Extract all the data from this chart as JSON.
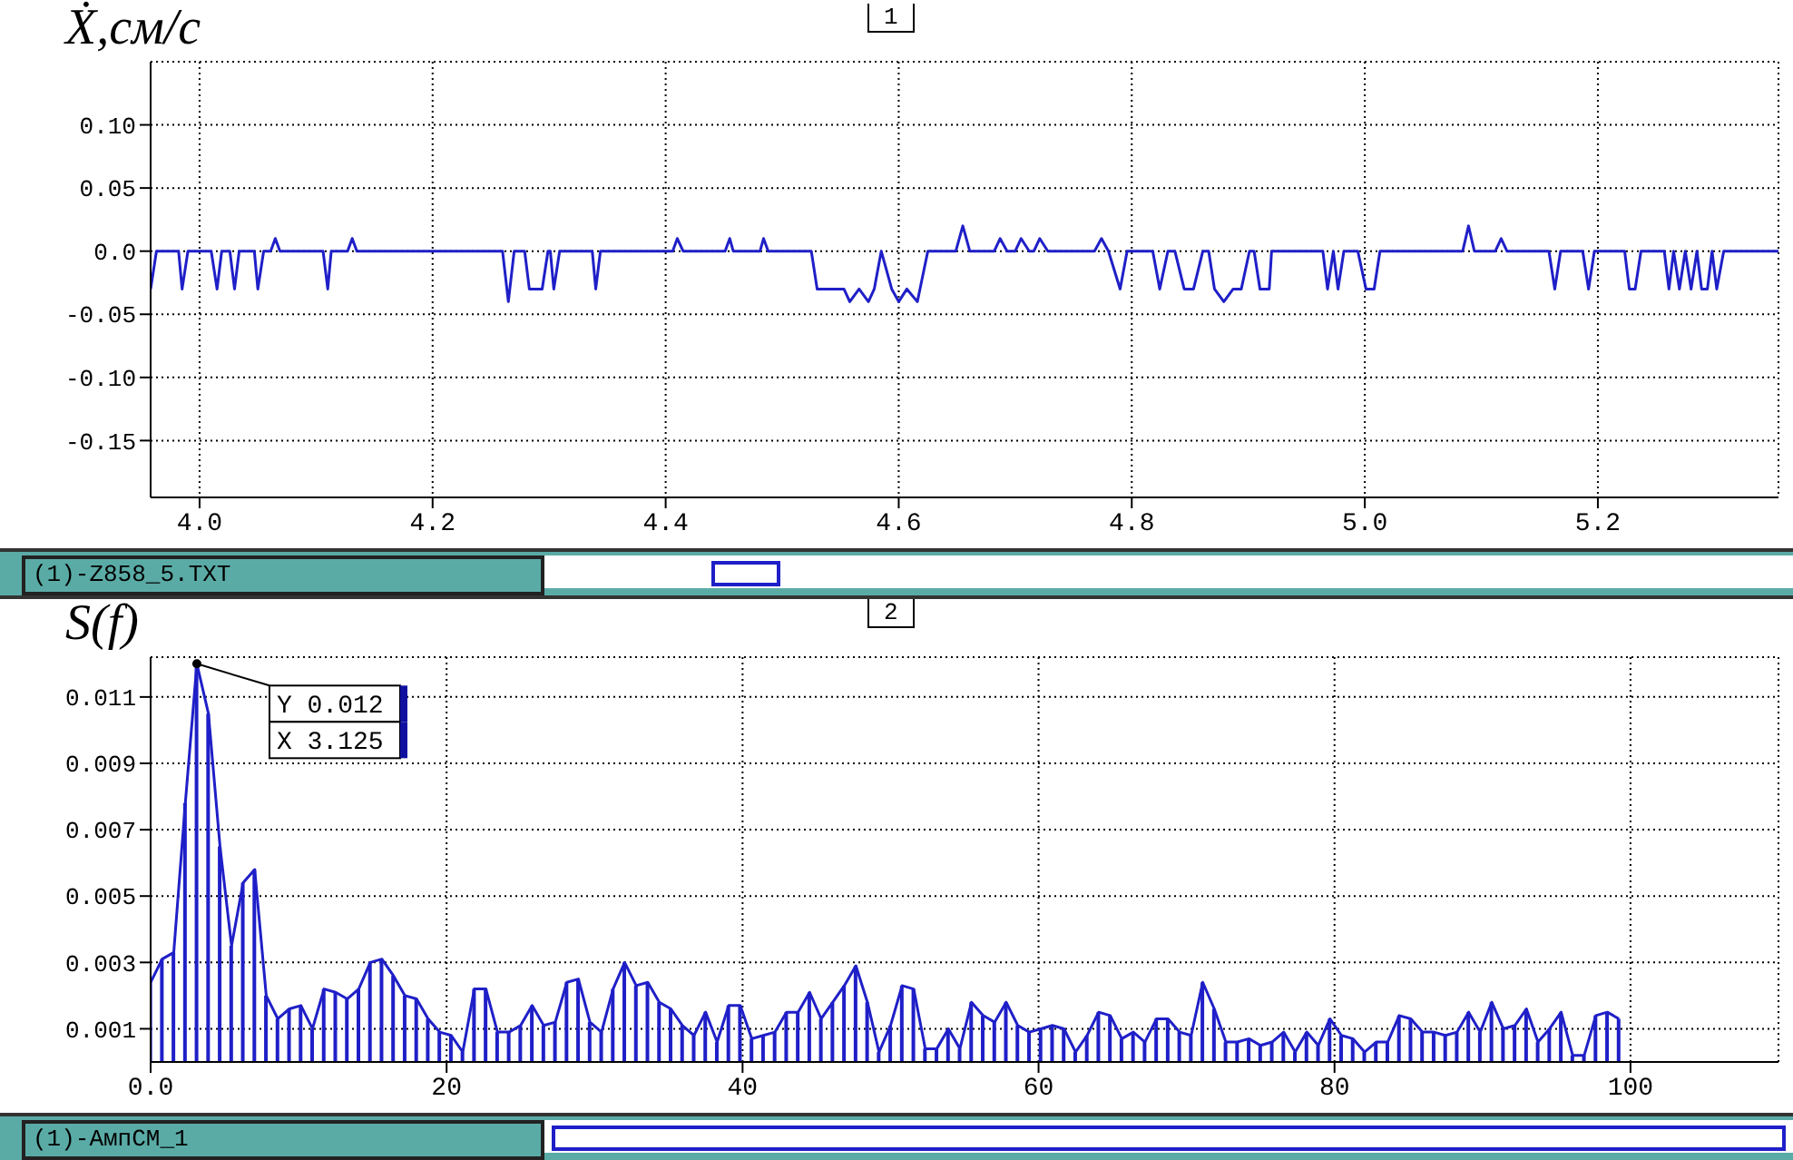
{
  "chart_data": [
    {
      "type": "line",
      "ylabel": "Ẋ,см/с",
      "annotations": [
        "1",
        "(1)-Z858_5.TXT"
      ],
      "color": "#1f1fc8",
      "grid": true,
      "xlim": [
        3.958,
        5.355
      ],
      "ylim": [
        -0.195,
        0.15
      ],
      "xticks": [
        {
          "value": 4,
          "label": "4.0"
        },
        4.2,
        4.4,
        4.6,
        4.8,
        {
          "value": 5,
          "label": "5.0"
        },
        5.2
      ],
      "yticks": [
        {
          "value": 0.1,
          "label": "0.10"
        },
        0.05,
        {
          "value": 0,
          "label": "0.0"
        },
        -0.05,
        {
          "value": -0.1,
          "label": "-0.10"
        },
        -0.15
      ],
      "x": [
        3.958,
        3.963,
        3.982,
        3.985,
        3.99,
        4.01,
        4.015,
        4.019,
        4.026,
        4.03,
        4.034,
        4.047,
        4.05,
        4.055,
        4.061,
        4.065,
        4.069,
        4.106,
        4.11,
        4.113,
        4.127,
        4.131,
        4.135,
        4.26,
        4.265,
        4.27,
        4.279,
        4.283,
        4.294,
        4.299,
        4.301,
        4.304,
        4.309,
        4.337,
        4.34,
        4.344,
        4.406,
        4.41,
        4.415,
        4.451,
        4.455,
        4.458,
        4.481,
        4.484,
        4.488,
        4.525,
        4.53,
        4.553,
        4.558,
        4.566,
        4.574,
        4.579,
        4.585,
        4.594,
        4.6,
        4.607,
        4.616,
        4.625,
        4.649,
        4.655,
        4.661,
        4.682,
        4.687,
        4.693,
        4.7,
        4.705,
        4.712,
        4.716,
        4.721,
        4.728,
        4.768,
        4.774,
        4.78,
        4.79,
        4.796,
        4.818,
        4.824,
        4.831,
        4.837,
        4.845,
        4.853,
        4.861,
        4.866,
        4.871,
        4.879,
        4.887,
        4.894,
        4.901,
        4.905,
        4.91,
        4.918,
        4.92,
        4.964,
        4.968,
        4.973,
        4.977,
        4.982,
        4.988,
        4.994,
        5.001,
        5.008,
        5.013,
        5.084,
        5.089,
        5.094,
        5.112,
        5.117,
        5.122,
        5.158,
        5.163,
        5.168,
        5.187,
        5.192,
        5.197,
        5.223,
        5.227,
        5.232,
        5.237,
        5.257,
        5.261,
        5.265,
        5.27,
        5.275,
        5.28,
        5.285,
        5.289,
        5.294,
        5.298,
        5.302,
        5.308,
        5.355
      ],
      "values": [
        -0.03,
        0,
        0,
        -0.03,
        0,
        0,
        -0.03,
        0,
        0,
        -0.03,
        0,
        0,
        -0.03,
        0,
        0,
        0.01,
        0,
        0,
        -0.03,
        0,
        0,
        0.01,
        0,
        0,
        -0.04,
        0,
        0,
        -0.03,
        -0.03,
        0,
        0,
        -0.03,
        0,
        0,
        -0.03,
        0,
        0,
        0.01,
        0,
        0,
        0.01,
        0,
        0,
        0.01,
        0,
        0,
        -0.03,
        -0.03,
        -0.04,
        -0.03,
        -0.04,
        -0.03,
        0,
        -0.03,
        -0.04,
        -0.03,
        -0.04,
        0,
        0,
        0.02,
        0,
        0,
        0.01,
        0,
        0,
        0.01,
        0,
        0,
        0.01,
        0,
        0,
        0.01,
        0,
        -0.03,
        0,
        0,
        -0.03,
        0,
        0,
        -0.03,
        -0.03,
        0,
        0,
        -0.03,
        -0.04,
        -0.03,
        -0.03,
        0,
        0,
        -0.03,
        -0.03,
        0,
        0,
        -0.03,
        0,
        -0.03,
        0,
        0,
        0,
        -0.03,
        -0.03,
        0,
        0,
        0.02,
        0,
        0,
        0.01,
        0,
        0,
        -0.03,
        0,
        0,
        -0.03,
        0,
        0,
        -0.03,
        -0.03,
        0,
        0,
        -0.03,
        0,
        -0.03,
        0,
        -0.03,
        0,
        -0.03,
        -0.03,
        0,
        -0.03,
        0,
        0
      ]
    },
    {
      "type": "line",
      "ylabel": "S(f)",
      "annotations": [
        "2",
        "(1)-АмпСМ_1",
        {
          "text": "Y 0.012",
          "x": 3.125,
          "y": 0.012
        },
        "X 3.125"
      ],
      "grid": true,
      "xlim": [
        0,
        110
      ],
      "ylim": [
        0,
        0.0122
      ],
      "xticks": [
        {
          "value": 0,
          "label": "0.0"
        },
        20,
        40,
        60,
        80,
        100
      ],
      "yticks": [
        0.001,
        0.003,
        0.005,
        0.007,
        0.009,
        0.011
      ],
      "x": [
        0,
        0.78125,
        1.5625,
        2.34375,
        3.125,
        3.90625,
        4.6875,
        5.46875,
        6.25,
        7.03125,
        7.8125,
        8.59375,
        9.375,
        10.15625,
        10.9375,
        11.71875,
        12.5,
        13.28125,
        14.0625,
        14.84375,
        15.625,
        16.40625,
        17.1875,
        17.96875,
        18.75,
        19.53125,
        20.3125,
        21.09375,
        21.875,
        22.65625,
        23.4375,
        24.21875,
        25,
        25.78125,
        26.5625,
        27.34375,
        28.125,
        28.90625,
        29.6875,
        30.46875,
        31.25,
        32.03125,
        32.8125,
        33.59375,
        34.375,
        35.15625,
        35.9375,
        36.71875,
        37.5,
        38.28125,
        39.0625,
        39.84375,
        40.625,
        41.40625,
        42.1875,
        42.96875,
        43.75,
        44.53125,
        45.3125,
        46.09375,
        46.875,
        47.65625,
        48.4375,
        49.21875,
        50,
        50.78125,
        51.5625,
        52.34375,
        53.125,
        53.90625,
        54.6875,
        55.46875,
        56.25,
        57.03125,
        57.8125,
        58.59375,
        59.375,
        60.15625,
        60.9375,
        61.71875,
        62.5,
        63.28125,
        64.0625,
        64.84375,
        65.625,
        66.40625,
        67.1875,
        67.96875,
        68.75,
        69.53125,
        70.3125,
        71.09375,
        71.875,
        72.65625,
        73.4375,
        74.21875,
        75,
        75.78125,
        76.5625,
        77.34375,
        78.125,
        78.90625,
        79.6875,
        80.46875,
        81.25,
        82.03125,
        82.8125,
        83.59375,
        84.375,
        85.15625,
        85.9375,
        86.71875,
        87.5,
        88.28125,
        89.0625,
        89.84375,
        90.625,
        91.40625,
        92.1875,
        92.96875,
        93.75,
        94.53125,
        95.3125,
        96.09375,
        96.875,
        97.65625,
        98.4375,
        99.21875
      ],
      "series": [
        {
          "color": "#1f1fc8",
          "values": [
            0.0024,
            0.0031,
            0.0033,
            0.0078,
            0.012,
            0.0105,
            0.0065,
            0.0035,
            0.0054,
            0.0058,
            0.002,
            0.0013,
            0.0016,
            0.0017,
            0.001,
            0.0022,
            0.0021,
            0.0019,
            0.0022,
            0.003,
            0.0031,
            0.0026,
            0.002,
            0.0019,
            0.0013,
            0.0009,
            0.0008,
            0.0003,
            0.0022,
            0.0022,
            0.0009,
            0.0009,
            0.0011,
            0.0017,
            0.0011,
            0.0012,
            0.0024,
            0.0025,
            0.0012,
            0.0009,
            0.0022,
            0.003,
            0.0023,
            0.0024,
            0.0018,
            0.0016,
            0.0011,
            0.0008,
            0.0015,
            0.0006,
            0.0017,
            0.0017,
            0.0007,
            0.0008,
            0.0009,
            0.0015,
            0.0015,
            0.0021,
            0.0013,
            0.0018,
            0.0023,
            0.0029,
            0.0018,
            0.0003,
            0.0011,
            0.0023,
            0.0022,
            0.0004,
            0.0004,
            0.001,
            0.0004,
            0.0018,
            0.0014,
            0.0012,
            0.0018,
            0.0011,
            0.0009,
            0.001,
            0.0011,
            0.001,
            0.0003,
            0.0008,
            0.0015,
            0.0014,
            0.0007,
            0.0009,
            0.0006,
            0.0013,
            0.0013,
            0.0009,
            0.0008,
            0.0024,
            0.0016,
            0.0006,
            0.0006,
            0.0007,
            0.0005,
            0.0006,
            0.0009,
            0.0003,
            0.0009,
            0.0005,
            0.0013,
            0.0008,
            0.0007,
            0.0003,
            0.0006,
            0.0006,
            0.0014,
            0.0013,
            0.0009,
            0.0009,
            0.0008,
            0.0009,
            0.0015,
            0.0009,
            0.0018,
            0.001,
            0.0011,
            0.0016,
            0.0006,
            0.001,
            0.0015,
            0.0002,
            0.0002,
            0.0014,
            0.0015,
            0.0013
          ]
        },
        {
          "type": "bar",
          "color": "#1f1fc8",
          "values": [
            0.0024,
            0.0031,
            0.0033,
            0.0078,
            0.012,
            0.0105,
            0.0065,
            0.0035,
            0.0054,
            0.0058,
            0.002,
            0.0013,
            0.0016,
            0.0017,
            0.001,
            0.0022,
            0.0021,
            0.0019,
            0.0022,
            0.003,
            0.0031,
            0.0026,
            0.002,
            0.0019,
            0.0013,
            0.0009,
            0.0008,
            0.0003,
            0.0022,
            0.0022,
            0.0009,
            0.0009,
            0.0011,
            0.0017,
            0.0011,
            0.0012,
            0.0024,
            0.0025,
            0.0012,
            0.0009,
            0.0022,
            0.003,
            0.0023,
            0.0024,
            0.0018,
            0.0016,
            0.0011,
            0.0008,
            0.0015,
            0.0006,
            0.0017,
            0.0017,
            0.0007,
            0.0008,
            0.0009,
            0.0015,
            0.0015,
            0.0021,
            0.0013,
            0.0018,
            0.0023,
            0.0029,
            0.0018,
            0.0003,
            0.0011,
            0.0023,
            0.0022,
            0.0004,
            0.0004,
            0.001,
            0.0004,
            0.0018,
            0.0014,
            0.0012,
            0.0018,
            0.0011,
            0.0009,
            0.001,
            0.0011,
            0.001,
            0.0003,
            0.0008,
            0.0015,
            0.0014,
            0.0007,
            0.0009,
            0.0006,
            0.0013,
            0.0013,
            0.0009,
            0.0008,
            0.0024,
            0.0016,
            0.0006,
            0.0006,
            0.0007,
            0.0005,
            0.0006,
            0.0009,
            0.0003,
            0.0009,
            0.0005,
            0.0013,
            0.0008,
            0.0007,
            0.0003,
            0.0006,
            0.0006,
            0.0014,
            0.0013,
            0.0009,
            0.0009,
            0.0008,
            0.0009,
            0.0015,
            0.0009,
            0.0018,
            0.001,
            0.0011,
            0.0016,
            0.0006,
            0.001,
            0.0015,
            0.0002,
            0.0002,
            0.0014,
            0.0015,
            0.0013
          ]
        }
      ]
    }
  ]
}
